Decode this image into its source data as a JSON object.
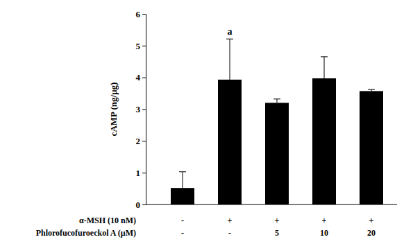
{
  "chart_data": {
    "type": "bar",
    "y_label": "cAMP (ng/μg)",
    "categories": [
      null,
      null,
      null,
      null,
      null
    ],
    "values": [
      0.52,
      3.93,
      3.2,
      3.97,
      3.57
    ],
    "errors": [
      0.51,
      1.28,
      0.12,
      0.68,
      0.05
    ],
    "color": "#000000",
    "ylim": [
      0,
      6
    ],
    "yticks": [
      0,
      1,
      2,
      3,
      4,
      5,
      6
    ],
    "grid": false,
    "annotations": [
      {
        "category": 1,
        "text": "a"
      }
    ],
    "treatments": [
      {
        "label": "α-MSH (10 nM)",
        "values": [
          "-",
          "+",
          "+",
          "+",
          "+"
        ]
      },
      {
        "label": "Phlorofucofuroeckol A (μM)",
        "values": [
          "-",
          "-",
          "5",
          "10",
          "20"
        ]
      }
    ]
  }
}
